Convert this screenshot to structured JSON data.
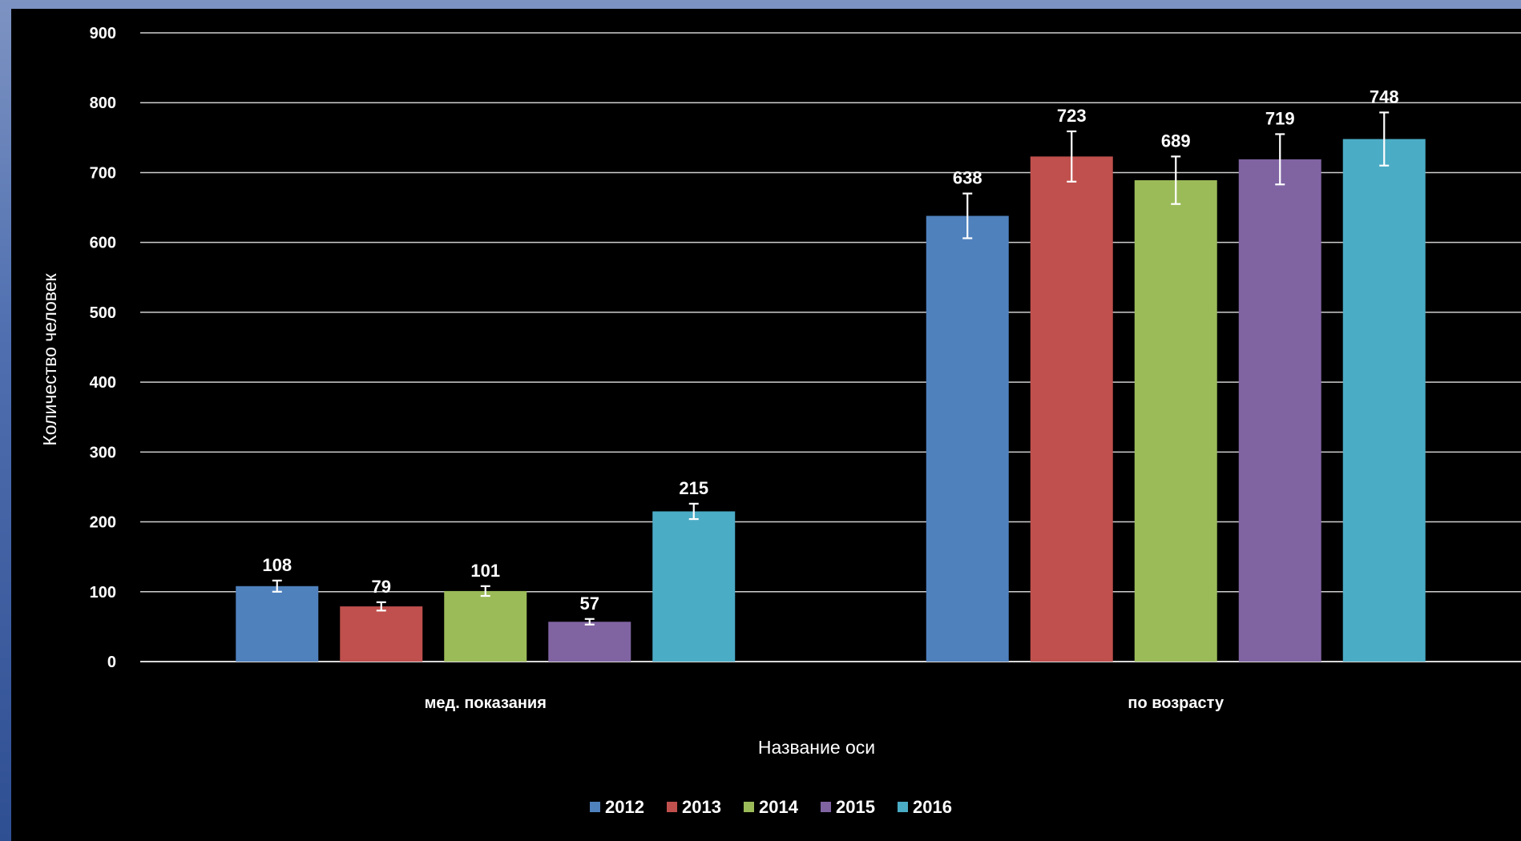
{
  "chart_data": {
    "type": "bar",
    "categories": [
      "мед. показания",
      "по возрасту"
    ],
    "series": [
      {
        "name": "2012",
        "values": [
          108,
          638
        ],
        "color": "#4f81bd"
      },
      {
        "name": "2013",
        "values": [
          79,
          723
        ],
        "color": "#c0504d"
      },
      {
        "name": "2014",
        "values": [
          101,
          689
        ],
        "color": "#9bbb59"
      },
      {
        "name": "2015",
        "values": [
          57,
          719
        ],
        "color": "#8064a2"
      },
      {
        "name": "2016",
        "values": [
          215,
          748
        ],
        "color": "#4bacc6"
      }
    ],
    "data_labels": [
      [
        "108",
        "638"
      ],
      [
        "79",
        "723"
      ],
      [
        "101",
        "689"
      ],
      [
        "57",
        "719"
      ],
      [
        "215",
        "748"
      ]
    ],
    "error_bars": [
      [
        8,
        32
      ],
      [
        6,
        36
      ],
      [
        7,
        34
      ],
      [
        4,
        36
      ],
      [
        11,
        38
      ]
    ],
    "xlabel": "Название оси",
    "ylabel": "Количество человек",
    "ylim": [
      0,
      900
    ],
    "yticks": [
      0,
      100,
      200,
      300,
      400,
      500,
      600,
      700,
      800,
      900
    ],
    "grid": true,
    "legend_position": "bottom",
    "background": "#000000",
    "text_color": "#ffffff"
  }
}
